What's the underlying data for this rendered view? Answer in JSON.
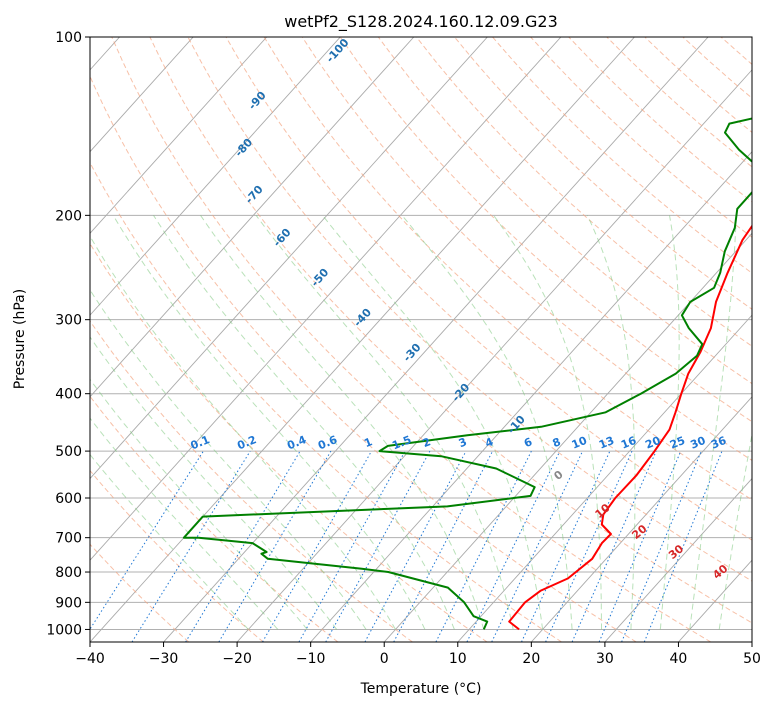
{
  "chart_data": {
    "type": "line",
    "title": "wetPf2_S128.2024.160.12.09.G23",
    "xlabel": "Temperature (°C)",
    "ylabel": "Pressure (hPa)",
    "xlim": [
      -40,
      50
    ],
    "ylim": [
      1050,
      100
    ],
    "y_scale": "log",
    "grid": true,
    "x_ticks": [
      "−40",
      "−30",
      "−20",
      "−10",
      "0",
      "10",
      "20",
      "30",
      "40",
      "50"
    ],
    "y_ticks": [
      1000,
      900,
      800,
      700,
      600,
      500,
      400,
      300,
      200,
      100
    ],
    "isotherm_labels": [
      "-100",
      "-90",
      "-80",
      "-70",
      "-60",
      "-50",
      "-40",
      "-30",
      "-20",
      "-10"
    ],
    "mixing_ratio_labels": [
      "0.1",
      "0.2",
      "0.4",
      "0.6",
      "1",
      "1.5",
      "2",
      "3",
      "4",
      "6",
      "8",
      "10",
      "13",
      "16",
      "20",
      "25",
      "30",
      "36"
    ],
    "moist_adiabat_labels": [
      "0",
      "10",
      "20",
      "30",
      "40"
    ],
    "colors": {
      "temperature": "#ff0000",
      "dewpoint": "#008000",
      "isotherm": "#aaaaaa",
      "dry_adiabat": "#f4a582",
      "moist_adiabat": "#7fc97f",
      "mixing_ratio": "#1f77d4",
      "isotherm_label": "#1f6fb0",
      "moist_label": "#d62728",
      "zero_label": "#888888"
    },
    "series": [
      {
        "name": "",
        "points": [
          [
            16.8,
            1000
          ],
          [
            14.5,
            970
          ],
          [
            14.3,
            900
          ],
          [
            15.0,
            860
          ],
          [
            17.2,
            820
          ],
          [
            18.1,
            760
          ],
          [
            17.5,
            715
          ],
          [
            17.6,
            690
          ],
          [
            15.2,
            665
          ],
          [
            14.2,
            640
          ],
          [
            13.8,
            600
          ],
          [
            13.9,
            550
          ],
          [
            13.4,
            500
          ],
          [
            12.8,
            460
          ],
          [
            11.5,
            430
          ],
          [
            10.0,
            400
          ],
          [
            8.5,
            370
          ],
          [
            7.5,
            340
          ],
          [
            6.0,
            310
          ],
          [
            3.5,
            280
          ],
          [
            1.5,
            250
          ],
          [
            -0.5,
            220
          ],
          [
            -1.0,
            205
          ],
          [
            2.0,
            190
          ],
          [
            5.5,
            175
          ],
          [
            7.0,
            165
          ],
          [
            9.0,
            152
          ],
          [
            12.0,
            140
          ],
          [
            15.0,
            130
          ],
          [
            16.5,
            120
          ],
          [
            18.8,
            110
          ],
          [
            19.5,
            103
          ],
          [
            20.5,
            100
          ]
        ]
      },
      {
        "name": "",
        "points": [
          [
            12.0,
            1000
          ],
          [
            11.5,
            970
          ],
          [
            9.0,
            950
          ],
          [
            6.0,
            900
          ],
          [
            2.0,
            850
          ],
          [
            -8.0,
            800
          ],
          [
            -12.0,
            790
          ],
          [
            -26.0,
            760
          ],
          [
            -27.5,
            745
          ],
          [
            -27.0,
            740
          ],
          [
            -30.0,
            715
          ],
          [
            -38.0,
            700
          ],
          [
            -40.0,
            700
          ],
          [
            -40.0,
            645
          ],
          [
            -8.0,
            620
          ],
          [
            2.0,
            595
          ],
          [
            1.5,
            575
          ],
          [
            -6.0,
            535
          ],
          [
            -15.0,
            510
          ],
          [
            -24.0,
            500
          ],
          [
            -23.5,
            490
          ],
          [
            -14.0,
            470
          ],
          [
            -5.0,
            455
          ],
          [
            2.0,
            430
          ],
          [
            4.5,
            400
          ],
          [
            6.8,
            370
          ],
          [
            7.5,
            345
          ],
          [
            6.8,
            330
          ],
          [
            3.0,
            310
          ],
          [
            0.5,
            295
          ],
          [
            0.0,
            280
          ],
          [
            1.5,
            265
          ],
          [
            0.5,
            250
          ],
          [
            -1.5,
            230
          ],
          [
            -3.0,
            210
          ],
          [
            -5.0,
            195
          ],
          [
            -5.0,
            180
          ],
          [
            -5.5,
            170
          ],
          [
            -12.0,
            155
          ],
          [
            -16.0,
            145
          ],
          [
            -16.5,
            140
          ],
          [
            -12.0,
            135
          ],
          [
            -11.0,
            130
          ],
          [
            -8.5,
            120
          ],
          [
            -4.5,
            115
          ],
          [
            -1.0,
            105
          ],
          [
            0.5,
            100
          ]
        ]
      }
    ]
  }
}
